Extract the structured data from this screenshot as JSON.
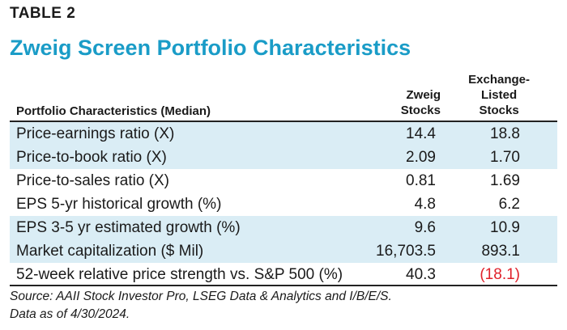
{
  "table_label": "TABLE 2",
  "title": "Zweig Screen Portfolio Characteristics",
  "header": {
    "label": "Portfolio Characteristics (Median)",
    "col1": [
      "Zweig",
      "Stocks"
    ],
    "col2": [
      "Exchange-",
      "Listed",
      "Stocks"
    ]
  },
  "rows": [
    {
      "name": "Price-earnings ratio (X)",
      "v1": "14.4",
      "v2": "18.8"
    },
    {
      "name": "Price-to-book ratio (X)",
      "v1": "2.09",
      "v2": "1.70"
    },
    {
      "name": "Price-to-sales ratio (X)",
      "v1": "0.81",
      "v2": "1.69"
    },
    {
      "name": "EPS 5-yr historical growth (%)",
      "v1": "4.8",
      "v2": "6.2"
    },
    {
      "name": "EPS 3-5 yr estimated growth (%)",
      "v1": "9.6",
      "v2": "10.9"
    },
    {
      "name": "Market capitalization ($ Mil)",
      "v1": "16,703.5",
      "v2": "893.1"
    },
    {
      "name": "52-week relative price strength vs. S&P 500 (%)",
      "v1": "40.3",
      "v2": "(18.1)"
    }
  ],
  "source": {
    "line1": "Source: AAII Stock Investor Pro, LSEG Data & Analytics and I/B/E/S.",
    "line2": "Data as of 4/30/2024."
  },
  "colors": {
    "title": "#1a9cc7",
    "shade": "#daedf5",
    "negative": "#e0202a"
  }
}
